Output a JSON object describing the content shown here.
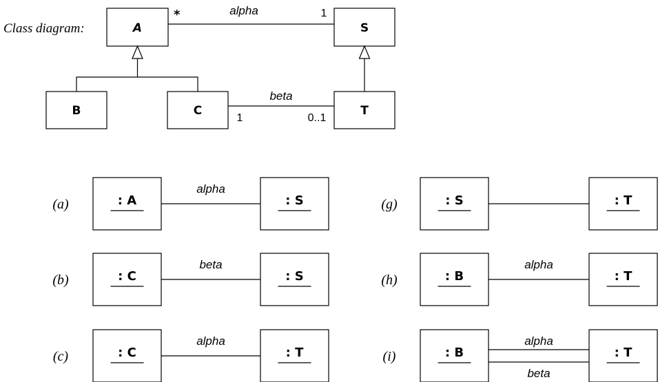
{
  "class_diagram": {
    "caption": "Class diagram:",
    "classes": {
      "A": "A",
      "S": "S",
      "B": "B",
      "C": "C",
      "T": "T"
    },
    "associations": {
      "alpha": {
        "name": "alpha",
        "mult_a": "*",
        "mult_s": "1"
      },
      "beta": {
        "name": "beta",
        "mult_c": "1",
        "mult_t": "0..1"
      }
    }
  },
  "object_diagrams": [
    {
      "label": "(a)",
      "left": ": A",
      "right": ": S",
      "top_assoc": "alpha",
      "bottom_assoc": ""
    },
    {
      "label": "(b)",
      "left": ": C",
      "right": ": S",
      "top_assoc": "beta",
      "bottom_assoc": ""
    },
    {
      "label": "(c)",
      "left": ": C",
      "right": ": T",
      "top_assoc": "alpha",
      "bottom_assoc": ""
    },
    {
      "label": "(g)",
      "left": ": S",
      "right": ": T",
      "top_assoc": "",
      "bottom_assoc": ""
    },
    {
      "label": "(h)",
      "left": ": B",
      "right": ": T",
      "top_assoc": "alpha",
      "bottom_assoc": ""
    },
    {
      "label": "(i)",
      "left": ": B",
      "right": ": T",
      "top_assoc": "alpha",
      "bottom_assoc": "beta"
    }
  ]
}
